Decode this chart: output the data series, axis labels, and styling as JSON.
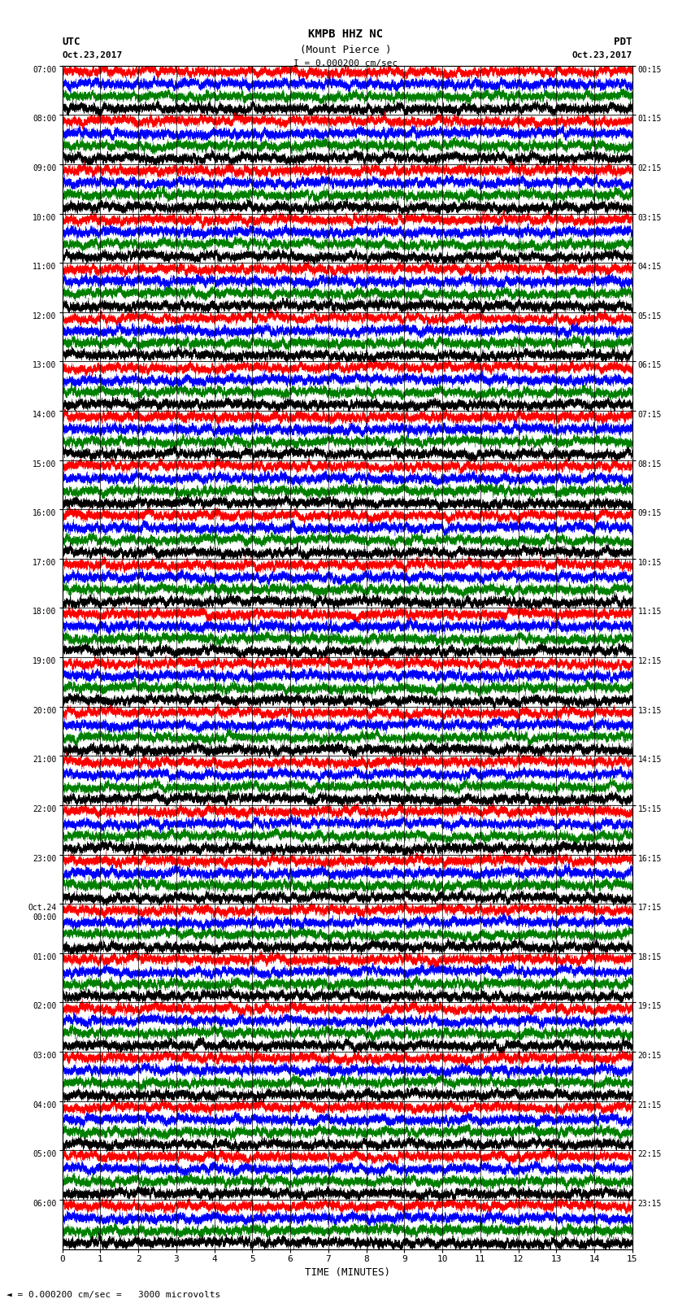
{
  "title_line1": "KMPB HHZ NC",
  "title_line2": "(Mount Pierce )",
  "scale_label": "I = 0.000200 cm/sec",
  "left_label": "UTC",
  "left_date": "Oct.23,2017",
  "right_label": "PDT",
  "right_date": "Oct.23,2017",
  "xlabel": "TIME (MINUTES)",
  "bottom_note": "= 0.000200 cm/sec =   3000 microvolts",
  "left_times": [
    "07:00",
    "08:00",
    "09:00",
    "10:00",
    "11:00",
    "12:00",
    "13:00",
    "14:00",
    "15:00",
    "16:00",
    "17:00",
    "18:00",
    "19:00",
    "20:00",
    "21:00",
    "22:00",
    "23:00",
    "Oct.24\n00:00",
    "01:00",
    "02:00",
    "03:00",
    "04:00",
    "05:00",
    "06:00"
  ],
  "right_times": [
    "00:15",
    "01:15",
    "02:15",
    "03:15",
    "04:15",
    "05:15",
    "06:15",
    "07:15",
    "08:15",
    "09:15",
    "10:15",
    "11:15",
    "12:15",
    "13:15",
    "14:15",
    "15:15",
    "16:15",
    "17:15",
    "18:15",
    "19:15",
    "20:15",
    "21:15",
    "22:15",
    "23:15"
  ],
  "n_rows": 24,
  "n_traces_per_row": 4,
  "colors": [
    "red",
    "blue",
    "green",
    "black"
  ],
  "bg_color": "white",
  "xmin": 0,
  "xmax": 15,
  "xticks": [
    0,
    1,
    2,
    3,
    4,
    5,
    6,
    7,
    8,
    9,
    10,
    11,
    12,
    13,
    14,
    15
  ]
}
